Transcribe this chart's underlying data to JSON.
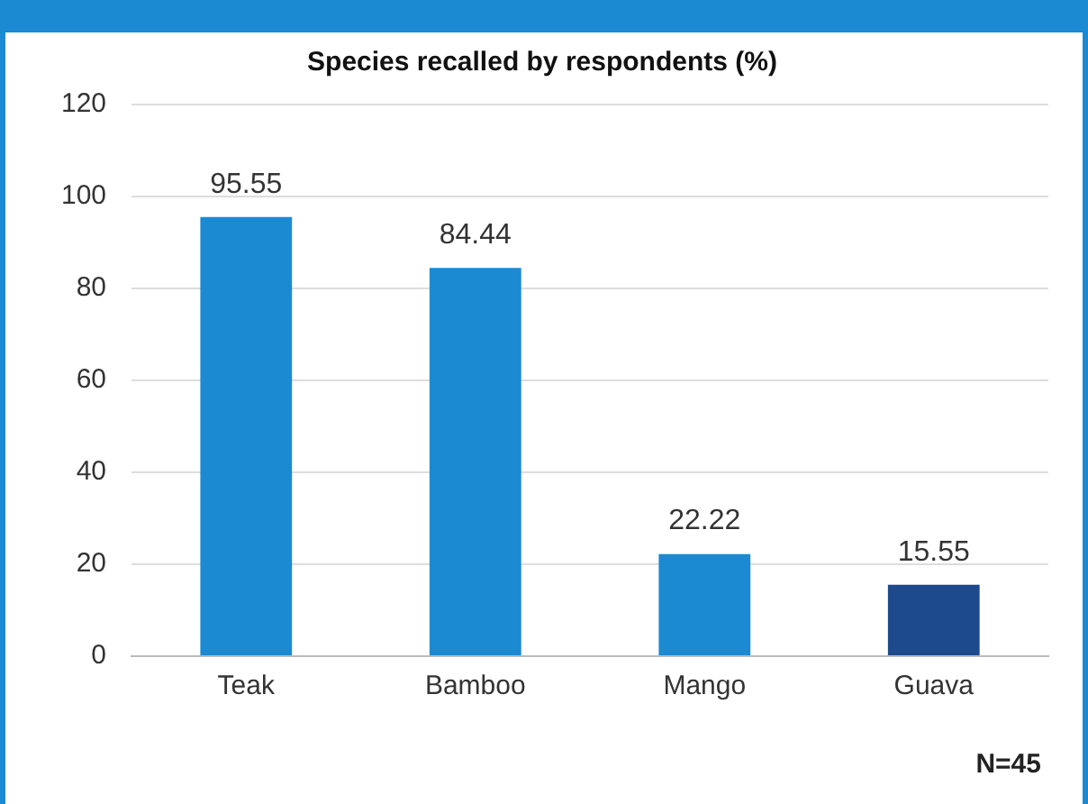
{
  "chart_data": {
    "type": "bar",
    "title": "Species recalled by respondents (%)",
    "categories": [
      "Teak",
      "Bamboo",
      "Mango",
      "Guava"
    ],
    "values": [
      95.55,
      84.44,
      22.22,
      15.55
    ],
    "colors": [
      "#1b8ad3",
      "#1b8ad3",
      "#1b8ad3",
      "#1d4a8c"
    ],
    "ylim": [
      0,
      120
    ],
    "yticks": [
      0,
      20,
      40,
      60,
      80,
      100,
      120
    ],
    "grid": "y",
    "data_labels": true,
    "annotations": [
      "N=45"
    ]
  }
}
